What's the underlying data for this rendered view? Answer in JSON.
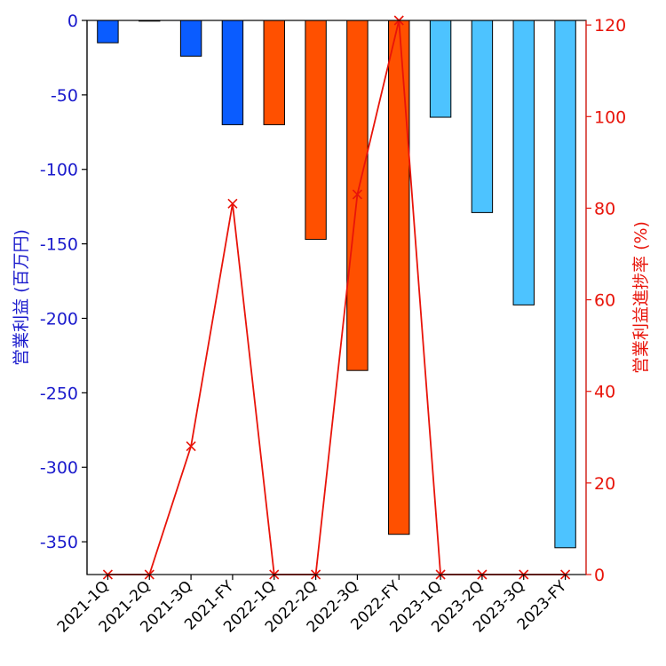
{
  "chart_data": {
    "type": "bar",
    "categories": [
      "2021-1Q",
      "2021-2Q",
      "2021-3Q",
      "2021-FY",
      "2022-1Q",
      "2022-2Q",
      "2022-3Q",
      "2022-FY",
      "2023-1Q",
      "2023-2Q",
      "2023-3Q",
      "2023-FY"
    ],
    "series": [
      {
        "axis": "left",
        "kind": "bar",
        "values": [
          -15,
          0,
          -24,
          -70,
          -70,
          -147,
          -235,
          -345,
          -65,
          -129,
          -191,
          -354
        ],
        "colors": [
          "#0a5cff",
          "#0a5cff",
          "#0a5cff",
          "#0a5cff",
          "#ff5000",
          "#ff5000",
          "#ff5000",
          "#ff5000",
          "#4dc3ff",
          "#4dc3ff",
          "#4dc3ff",
          "#4dc3ff"
        ]
      },
      {
        "axis": "right",
        "kind": "line",
        "marker": "x",
        "color": "#e8140a",
        "values": [
          0,
          0,
          28,
          81,
          0,
          0,
          83,
          121,
          0,
          0,
          0,
          0
        ]
      }
    ],
    "ylabel_left": "営業利益 (百万円)",
    "ylabel_right": "営業利益進捗率 (%)",
    "ylim_left": [
      -372,
      0
    ],
    "ylim_right": [
      0,
      121
    ],
    "yticks_left": [
      0,
      -50,
      -100,
      -150,
      -200,
      -250,
      -300,
      -350
    ],
    "yticks_right": [
      0,
      20,
      40,
      60,
      80,
      100,
      120
    ],
    "grid": false,
    "legend": "none",
    "left_axis_color": "#1a1acc",
    "right_axis_color": "#e8140a"
  }
}
